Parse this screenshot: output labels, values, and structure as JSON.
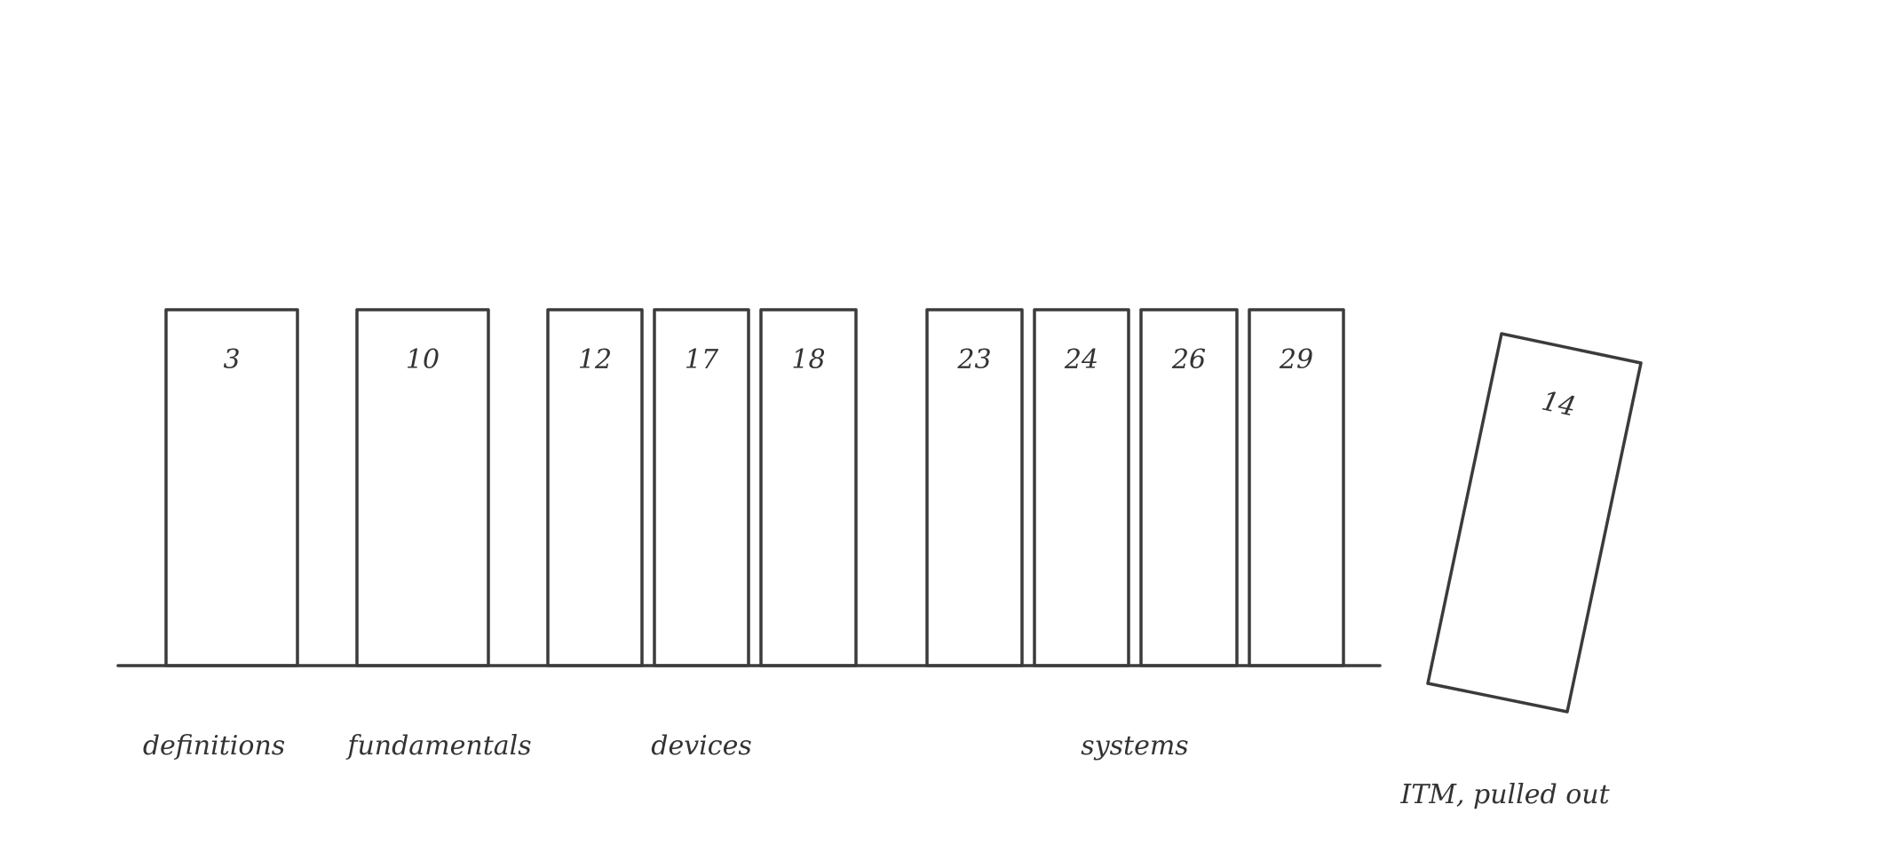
{
  "shelf": {
    "books": [
      {
        "label": "3"
      },
      {
        "label": "10"
      },
      {
        "label": "12"
      },
      {
        "label": "17"
      },
      {
        "label": "18"
      },
      {
        "label": "23"
      },
      {
        "label": "24"
      },
      {
        "label": "26"
      },
      {
        "label": "29"
      }
    ],
    "groups": [
      {
        "label": "definitions"
      },
      {
        "label": "fundamentals"
      },
      {
        "label": "devices"
      },
      {
        "label": "systems"
      }
    ],
    "pulled_out": {
      "label": "14",
      "caption": "ITM, pulled out"
    }
  }
}
